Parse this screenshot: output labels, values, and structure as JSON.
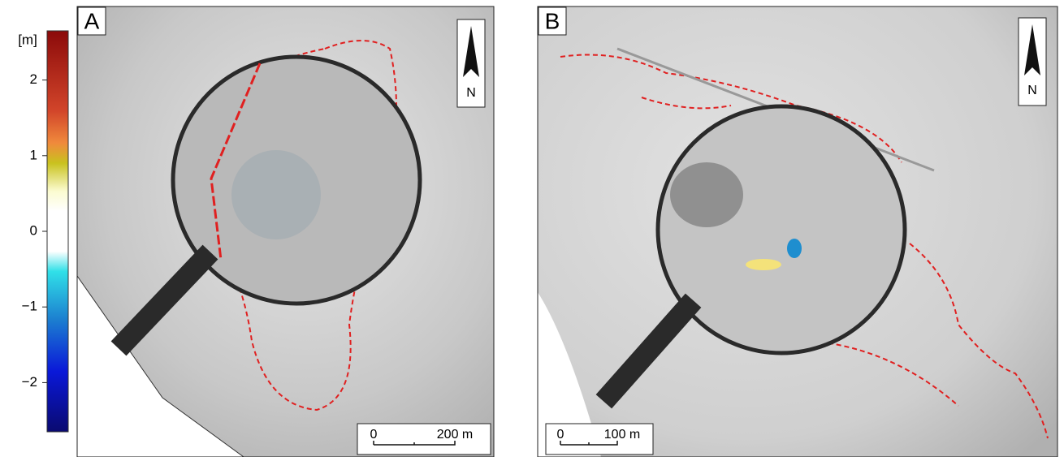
{
  "colorbar": {
    "label": "[m]",
    "lim": [
      -2.65,
      2.65
    ],
    "ticks": [
      {
        "value": 2,
        "label": "2"
      },
      {
        "value": 1,
        "label": "1"
      },
      {
        "value": 0,
        "label": "0"
      },
      {
        "value": -1,
        "label": "−1"
      },
      {
        "value": -2,
        "label": "−2"
      }
    ]
  },
  "panels": [
    {
      "label": "A",
      "north": "N",
      "scale_bar": {
        "start": "0",
        "end": "200 m"
      }
    },
    {
      "label": "B",
      "north": "N",
      "scale_bar": {
        "start": "0",
        "end": "100 m"
      }
    }
  ]
}
